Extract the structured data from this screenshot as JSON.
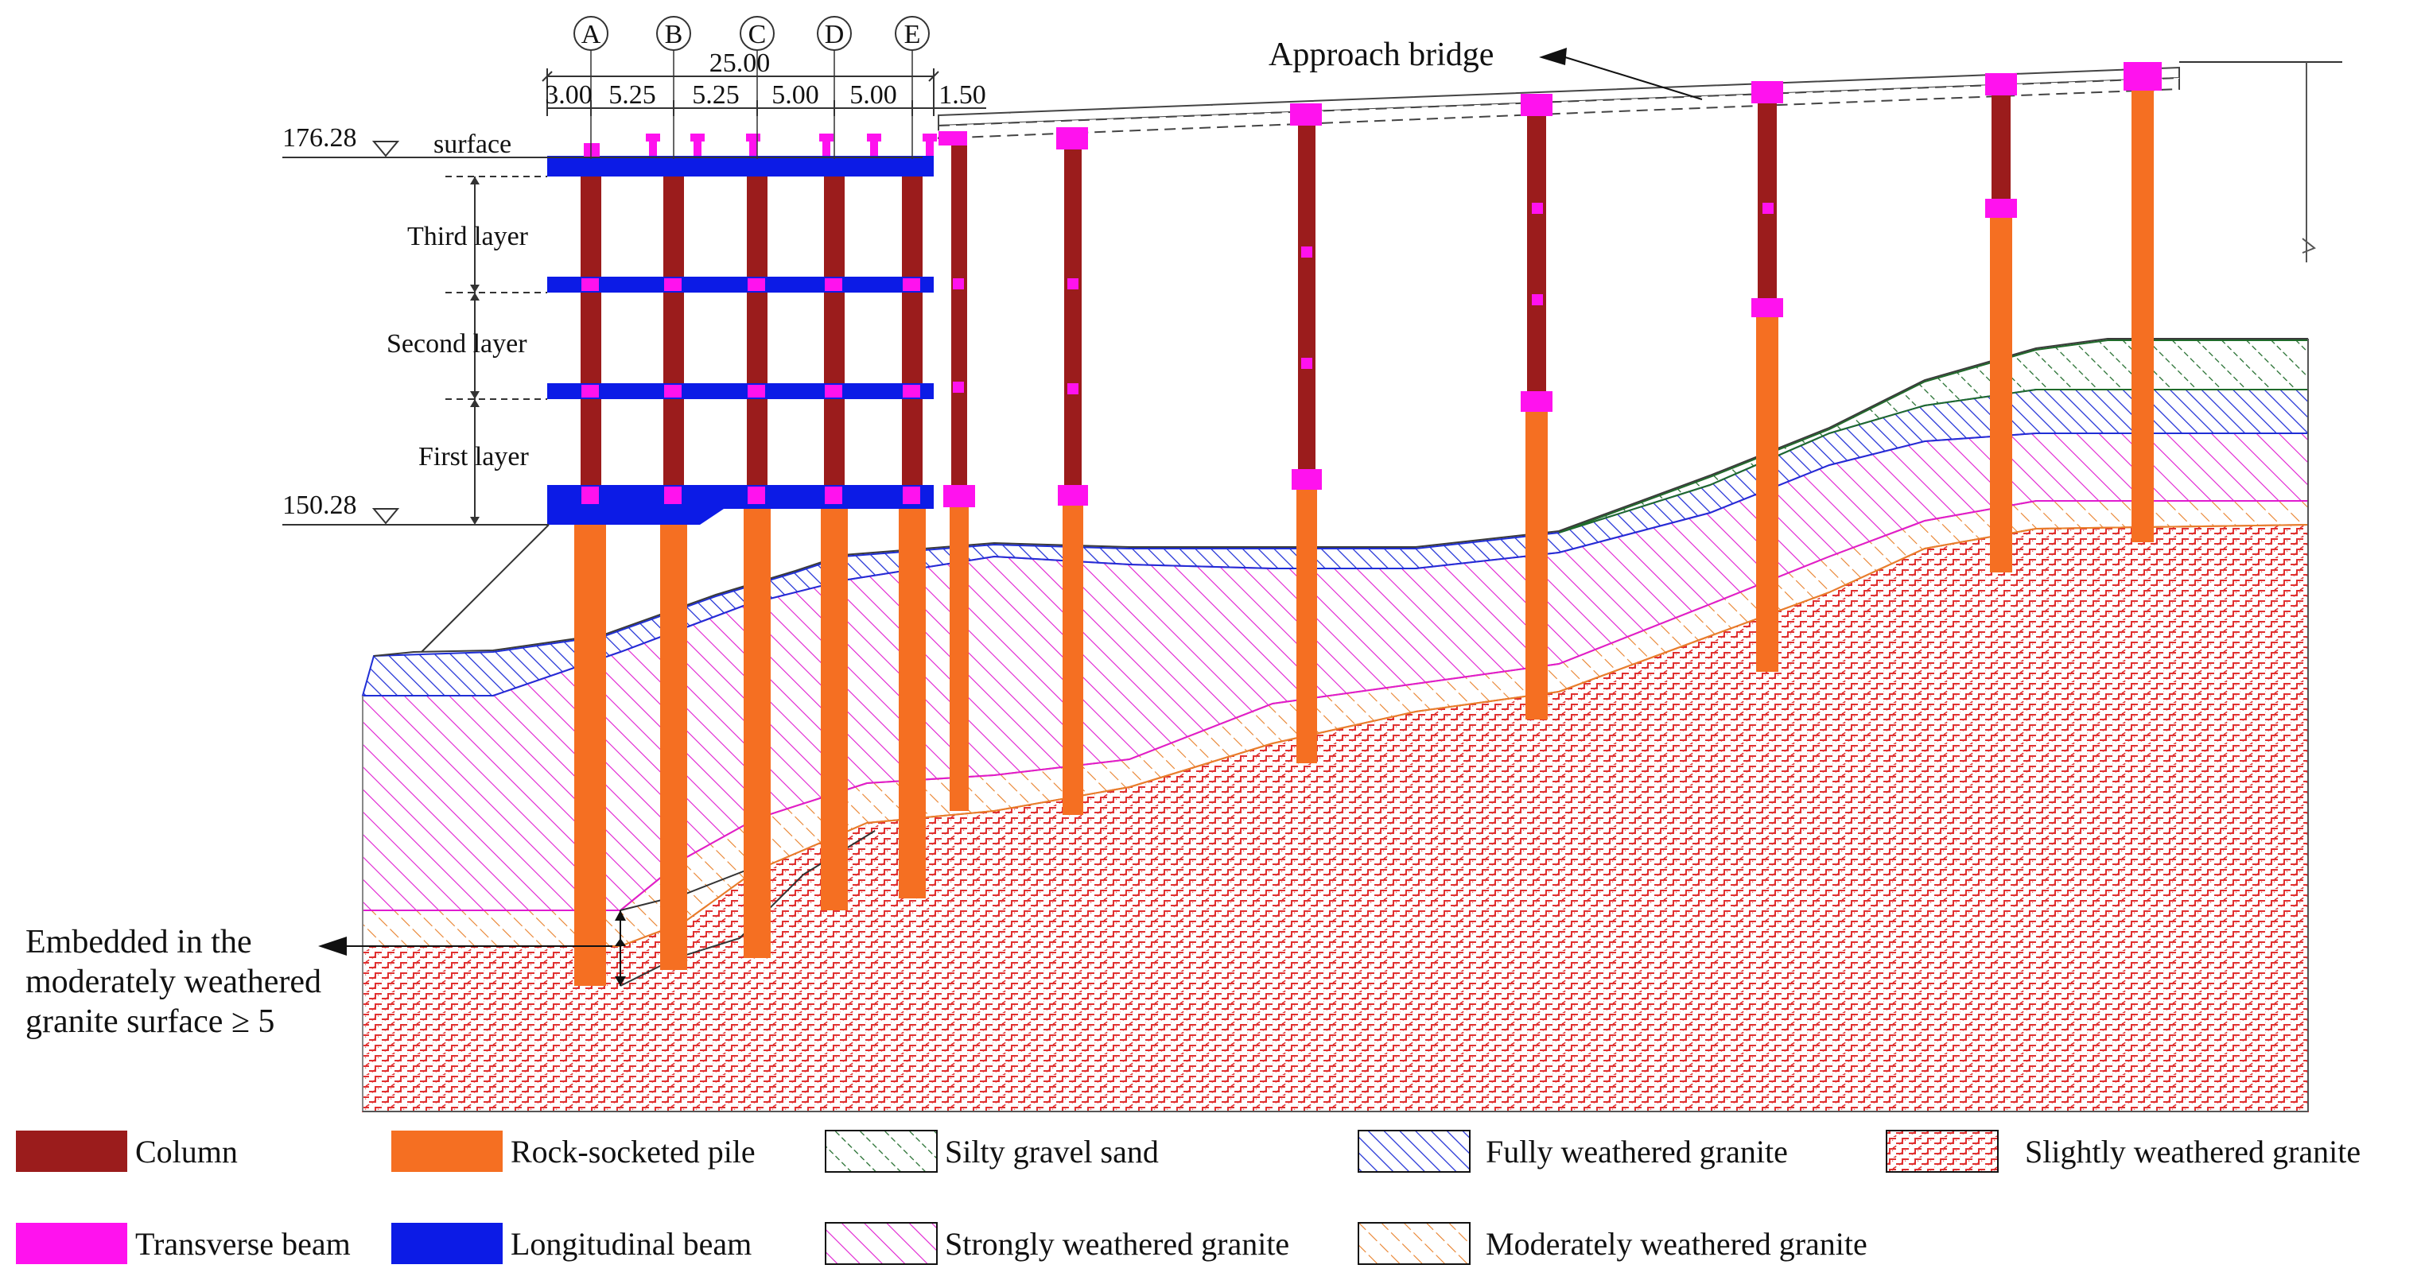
{
  "diagram": {
    "callouts": {
      "approach_bridge": "Approach bridge",
      "embedded_line1": "Embedded in the",
      "embedded_line2": "moderately weathered",
      "embedded_line3": "granite surface ≥ 5"
    },
    "elevations": {
      "top": "176.28",
      "bottom": "150.28"
    },
    "layers": {
      "surface": "surface",
      "third": "Third layer",
      "second": "Second layer",
      "first": "First layer"
    },
    "axes": [
      "A",
      "B",
      "C",
      "D",
      "E"
    ],
    "dimensions": {
      "total": "25.00",
      "spans": [
        "3.00",
        "5.25",
        "5.25",
        "5.00",
        "5.00",
        "1.50"
      ]
    }
  },
  "legend": {
    "items": [
      {
        "label": "Column",
        "color": "#9b1c1c"
      },
      {
        "label": "Rock-socketed pile",
        "color": "#f56f22"
      },
      {
        "label": "Silty gravel sand",
        "color": "#1f6b2a"
      },
      {
        "label": "Fully weathered granite",
        "color": "#1f2fd6"
      },
      {
        "label": "Slightly weathered granite",
        "color": "#e03030"
      },
      {
        "label": "Transverse beam",
        "color": "#ff12ee"
      },
      {
        "label": "Longitudinal beam",
        "color": "#0c1be6"
      },
      {
        "label": "Strongly weathered granite",
        "color": "#e01bd0"
      },
      {
        "label": "Moderately weathered granite",
        "color": "#e8802a"
      }
    ]
  }
}
